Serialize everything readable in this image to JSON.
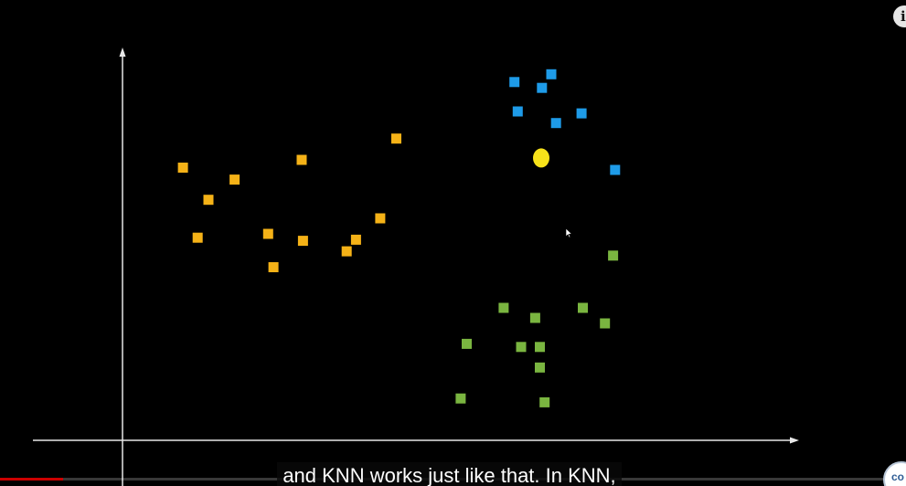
{
  "caption": {
    "text": "and KNN works just like that. In KNN,"
  },
  "info_button": {
    "glyph": "i"
  },
  "channel_logo": {
    "text": "co"
  },
  "progress": {
    "played_fraction": 0.07,
    "played_color": "#cc0000"
  },
  "chart_data": {
    "type": "scatter",
    "title": "",
    "xlabel": "",
    "ylabel": "",
    "xlim": [
      0,
      100
    ],
    "ylim": [
      0,
      100
    ],
    "grid": false,
    "axis_color": "#e8e8e8",
    "series": [
      {
        "color": "#f5b217",
        "marker": "square",
        "points": [
          [
            9.0,
            70.4
          ],
          [
            11.2,
            52.3
          ],
          [
            12.8,
            62.1
          ],
          [
            16.7,
            67.3
          ],
          [
            21.7,
            53.3
          ],
          [
            22.5,
            44.7
          ],
          [
            26.7,
            72.4
          ],
          [
            26.9,
            51.5
          ],
          [
            33.4,
            48.8
          ],
          [
            34.8,
            51.8
          ],
          [
            38.4,
            57.3
          ],
          [
            40.8,
            77.9
          ]
        ]
      },
      {
        "color": "#1e9be8",
        "marker": "square",
        "points": [
          [
            58.4,
            92.5
          ],
          [
            58.9,
            84.9
          ],
          [
            62.5,
            91.0
          ],
          [
            63.9,
            94.5
          ],
          [
            64.6,
            81.9
          ],
          [
            68.4,
            84.4
          ],
          [
            73.4,
            69.8
          ]
        ]
      },
      {
        "color": "#7ab540",
        "marker": "square",
        "points": [
          [
            50.4,
            10.8
          ],
          [
            51.3,
            24.9
          ],
          [
            56.8,
            34.2
          ],
          [
            59.4,
            24.1
          ],
          [
            61.5,
            31.6
          ],
          [
            62.2,
            24.1
          ],
          [
            62.2,
            18.8
          ],
          [
            62.9,
            9.8
          ],
          [
            68.6,
            34.2
          ],
          [
            71.9,
            30.2
          ],
          [
            73.1,
            47.7
          ]
        ]
      },
      {
        "color": "#f7e21a",
        "marker": "circle",
        "points": [
          [
            62.4,
            72.9
          ]
        ]
      }
    ]
  }
}
